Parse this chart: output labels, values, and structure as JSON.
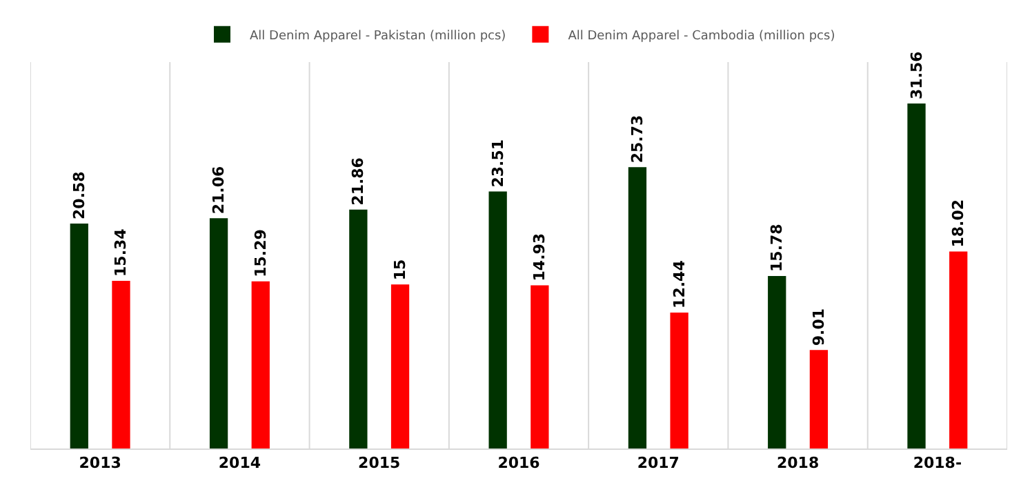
{
  "chart_data": {
    "type": "bar",
    "categories": [
      "2013",
      "2014",
      "2015",
      "2016",
      "2017",
      "2018",
      "2018-"
    ],
    "series": [
      {
        "name": "All Denim Apparel - Pakistan (million pcs)",
        "color": "#003300",
        "values": [
          20.58,
          21.06,
          21.86,
          23.51,
          25.73,
          15.78,
          31.56
        ]
      },
      {
        "name": "All Denim Apparel - Cambodia (million pcs)",
        "color": "#ff0000",
        "values": [
          15.34,
          15.29,
          15,
          14.93,
          12.44,
          9.01,
          18.02
        ]
      }
    ],
    "data_labels": true,
    "grid": "x",
    "legend": "top",
    "tick_labels": "x"
  }
}
